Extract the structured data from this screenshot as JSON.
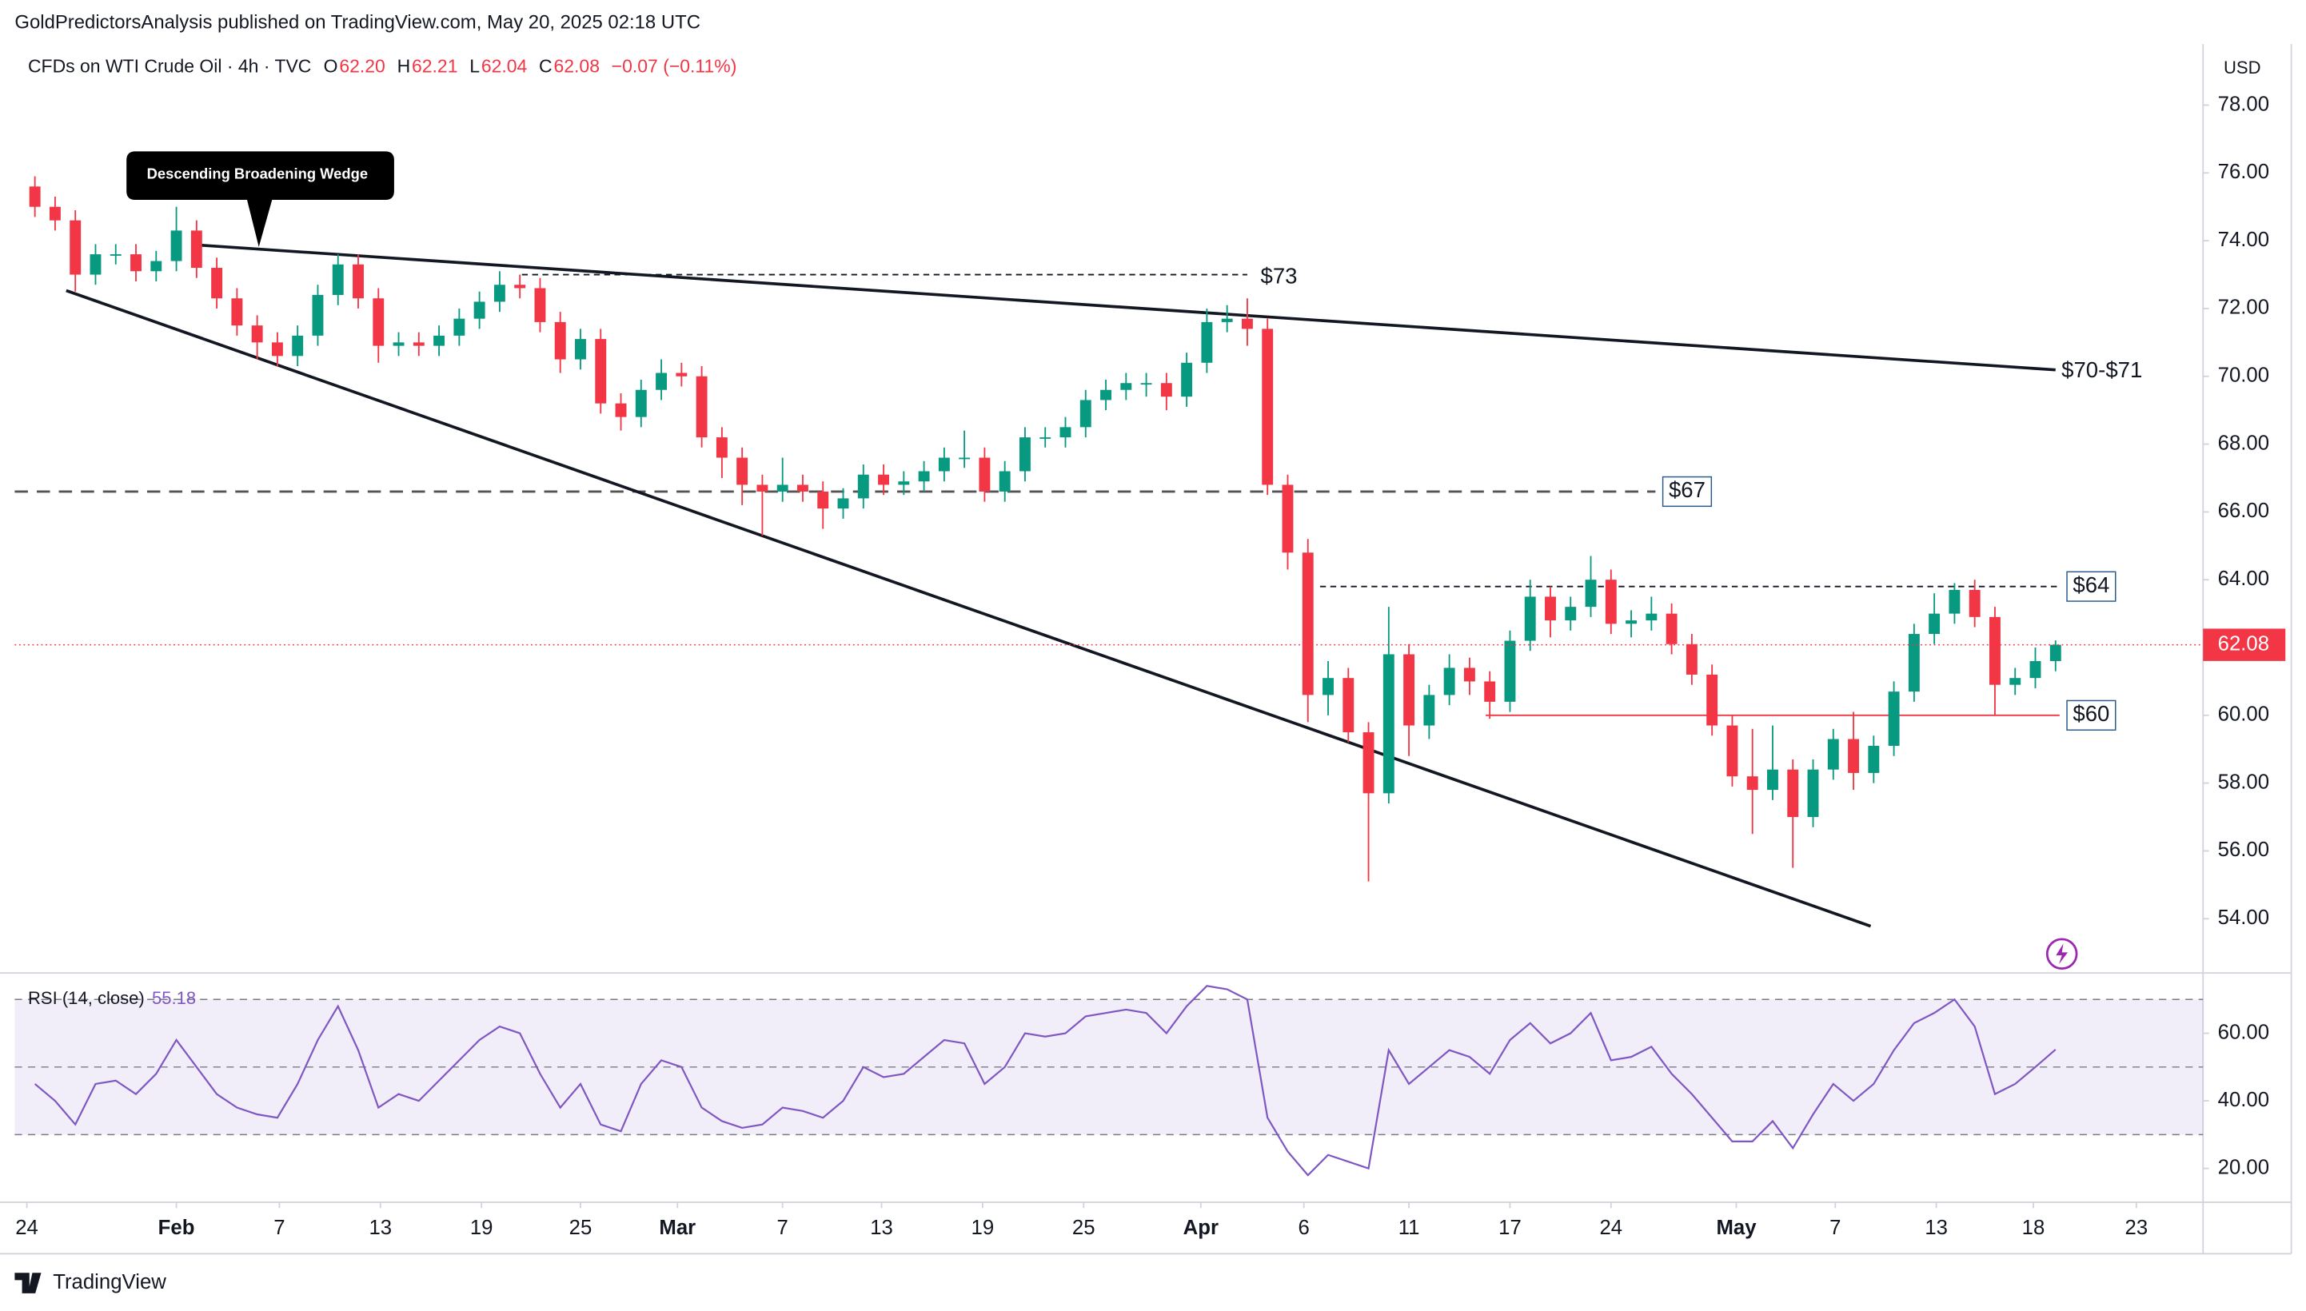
{
  "header": "GoldPredictorsAnalysis published on TradingView.com, May 20, 2025 02:18 UTC",
  "legend": {
    "symbol": "CFDs on WTI Crude Oil · 4h · TVC",
    "fields": [
      {
        "key": "O",
        "value": "62.20"
      },
      {
        "key": "H",
        "value": "62.21"
      },
      {
        "key": "L",
        "value": "62.04"
      },
      {
        "key": "C",
        "value": "62.08"
      }
    ],
    "change": "−0.07 (−0.11%)"
  },
  "currency": "USD",
  "brand": "TradingView",
  "chart_data": {
    "type": "candlestick",
    "up_color": "#089981",
    "down_color": "#f23645",
    "xlim": [
      -1,
      107.3
    ],
    "xticks": [
      {
        "value": -0.4,
        "label": "24"
      },
      {
        "value": 7,
        "label": "Feb"
      },
      {
        "value": 12.1,
        "label": "7"
      },
      {
        "value": 17.1,
        "label": "13"
      },
      {
        "value": 22.1,
        "label": "19"
      },
      {
        "value": 27,
        "label": "25"
      },
      {
        "value": 31.8,
        "label": "Mar"
      },
      {
        "value": 37,
        "label": "7"
      },
      {
        "value": 41.9,
        "label": "13"
      },
      {
        "value": 46.9,
        "label": "19"
      },
      {
        "value": 51.9,
        "label": "25"
      },
      {
        "value": 57.7,
        "label": "Apr"
      },
      {
        "value": 62.8,
        "label": "6"
      },
      {
        "value": 68,
        "label": "11"
      },
      {
        "value": 73,
        "label": "17"
      },
      {
        "value": 78,
        "label": "24"
      },
      {
        "value": 84.2,
        "label": "May"
      },
      {
        "value": 89.1,
        "label": "7"
      },
      {
        "value": 94.1,
        "label": "13"
      },
      {
        "value": 98.9,
        "label": "18"
      },
      {
        "value": 104,
        "label": "23"
      }
    ],
    "ylim": [
      52.4,
      79.8
    ],
    "yticks": [
      {
        "value": 54,
        "label": "54.00"
      },
      {
        "value": 56,
        "label": "56.00"
      },
      {
        "value": 58,
        "label": "58.00"
      },
      {
        "value": 60,
        "label": "60.00"
      },
      {
        "value": 62,
        "label": "62.00"
      },
      {
        "value": 64,
        "label": "64.00"
      },
      {
        "value": 66,
        "label": "66.00"
      },
      {
        "value": 68,
        "label": "68.00"
      },
      {
        "value": 70,
        "label": "70.00"
      },
      {
        "value": 72,
        "label": "72.00"
      },
      {
        "value": 74,
        "label": "74.00"
      },
      {
        "value": 76,
        "label": "76.00"
      },
      {
        "value": 78,
        "label": "78.00"
      }
    ],
    "open": [
      75.6,
      75.0,
      74.6,
      73.0,
      73.6,
      73.6,
      73.1,
      73.4,
      74.3,
      73.2,
      72.3,
      71.5,
      71.0,
      70.6,
      71.2,
      72.4,
      73.3,
      72.3,
      70.9,
      71.0,
      70.9,
      71.2,
      71.7,
      72.2,
      72.7,
      72.6,
      71.6,
      70.5,
      71.1,
      69.2,
      68.8,
      69.6,
      70.1,
      70.0,
      68.2,
      67.6,
      66.8,
      66.6,
      66.8,
      66.6,
      66.1,
      66.4,
      67.1,
      66.8,
      66.9,
      67.2,
      67.6,
      67.6,
      66.6,
      67.2,
      68.2,
      68.2,
      68.5,
      69.3,
      69.6,
      69.8,
      69.8,
      69.4,
      70.4,
      71.6,
      71.7,
      71.4,
      66.8,
      64.8,
      60.6,
      61.1,
      59.5,
      57.7,
      61.8,
      59.7,
      60.6,
      61.4,
      61.0,
      60.4,
      62.2,
      63.5,
      62.8,
      63.2,
      64.0,
      62.7,
      62.8,
      63.0,
      62.1,
      61.2,
      59.7,
      58.2,
      57.8,
      58.4,
      57.0,
      58.4,
      59.3,
      58.3,
      59.1,
      60.7,
      62.4,
      63.0,
      63.7,
      62.9,
      60.9,
      61.1,
      61.6
    ],
    "high": [
      75.9,
      75.3,
      74.9,
      73.9,
      73.9,
      73.9,
      73.7,
      75.0,
      74.6,
      73.5,
      72.6,
      71.8,
      71.3,
      71.5,
      72.7,
      73.6,
      73.6,
      72.6,
      71.3,
      71.3,
      71.5,
      72.0,
      72.5,
      73.1,
      73.0,
      72.9,
      71.9,
      71.4,
      71.4,
      69.5,
      69.9,
      70.5,
      70.4,
      70.3,
      68.5,
      67.9,
      67.1,
      67.6,
      67.1,
      66.9,
      66.7,
      67.4,
      67.4,
      67.2,
      67.5,
      67.9,
      68.4,
      67.9,
      67.5,
      68.5,
      68.5,
      68.8,
      69.6,
      69.9,
      70.1,
      70.1,
      70.1,
      70.7,
      72.0,
      72.1,
      72.3,
      71.7,
      67.1,
      65.2,
      61.6,
      61.4,
      59.8,
      63.2,
      62.1,
      60.9,
      61.8,
      61.7,
      61.3,
      62.5,
      64.0,
      63.8,
      63.5,
      64.7,
      64.3,
      63.1,
      63.5,
      63.3,
      62.4,
      61.5,
      60.0,
      59.6,
      59.7,
      58.7,
      58.7,
      59.6,
      60.1,
      59.4,
      61.0,
      62.7,
      63.6,
      63.9,
      64.0,
      63.2,
      61.4,
      62.0,
      62.21
    ],
    "low": [
      74.7,
      74.3,
      72.5,
      72.7,
      73.3,
      72.8,
      72.8,
      73.1,
      72.9,
      72.0,
      71.2,
      70.5,
      70.3,
      70.3,
      70.9,
      72.1,
      72.0,
      70.4,
      70.6,
      70.6,
      70.6,
      70.9,
      71.4,
      71.9,
      72.3,
      71.3,
      70.1,
      70.2,
      68.9,
      68.4,
      68.5,
      69.3,
      69.7,
      67.9,
      67.0,
      66.2,
      65.3,
      66.3,
      66.3,
      65.5,
      65.8,
      66.1,
      66.5,
      66.5,
      66.6,
      66.9,
      67.3,
      66.3,
      66.3,
      66.9,
      67.9,
      67.9,
      68.2,
      69.0,
      69.3,
      69.4,
      69.0,
      69.1,
      70.1,
      71.3,
      70.9,
      66.5,
      64.3,
      59.8,
      60.0,
      59.2,
      55.1,
      57.4,
      58.8,
      59.3,
      60.3,
      60.6,
      59.9,
      60.1,
      61.9,
      62.3,
      62.5,
      62.9,
      62.4,
      62.3,
      62.5,
      61.8,
      60.9,
      59.4,
      57.9,
      56.5,
      57.5,
      55.5,
      56.7,
      58.1,
      57.8,
      58.0,
      58.8,
      60.4,
      62.1,
      62.7,
      62.6,
      60.0,
      60.6,
      60.8,
      61.3
    ],
    "close": [
      75.0,
      74.6,
      73.0,
      73.6,
      73.6,
      73.1,
      73.4,
      74.3,
      73.2,
      72.3,
      71.5,
      71.0,
      70.6,
      71.2,
      72.4,
      73.3,
      72.3,
      70.9,
      71.0,
      70.9,
      71.2,
      71.7,
      72.2,
      72.7,
      72.6,
      71.6,
      70.5,
      71.1,
      69.2,
      68.8,
      69.6,
      70.1,
      70.0,
      68.2,
      67.6,
      66.8,
      66.6,
      66.8,
      66.6,
      66.1,
      66.4,
      67.1,
      66.8,
      66.9,
      67.2,
      67.6,
      67.6,
      66.6,
      67.2,
      68.2,
      68.2,
      68.5,
      69.3,
      69.6,
      69.8,
      69.8,
      69.4,
      70.4,
      71.6,
      71.7,
      71.4,
      66.8,
      64.8,
      60.6,
      61.1,
      59.5,
      57.7,
      61.8,
      59.7,
      60.6,
      61.4,
      61.0,
      60.4,
      62.2,
      63.5,
      62.8,
      63.2,
      64.0,
      62.7,
      62.8,
      63.0,
      62.1,
      61.2,
      59.7,
      58.2,
      57.8,
      58.4,
      57.0,
      58.4,
      59.3,
      58.3,
      59.1,
      60.7,
      62.4,
      63.0,
      63.7,
      62.9,
      60.9,
      61.1,
      61.6,
      62.08
    ],
    "last_price": {
      "value": 62.08,
      "label": "62.08"
    },
    "levels": [
      {
        "value": 73,
        "label": "$73",
        "from": 24.1,
        "to": 60,
        "style": "thin",
        "color": "#131722",
        "boxed": false
      },
      {
        "value": 66.6,
        "label": "$67",
        "from": -1,
        "to": 80.2,
        "style": "thick",
        "color": "#555",
        "boxed": true
      },
      {
        "value": 63.8,
        "label": "$64",
        "from": 63.6,
        "to": 100.2,
        "style": "thin",
        "color": "#131722",
        "boxed": true
      },
      {
        "value": 60,
        "label": "$60",
        "from": 71.8,
        "to": 100.2,
        "style": "solid",
        "color": "#f23645",
        "boxed": true
      }
    ],
    "trendlines": [
      {
        "from": [
          7.9,
          73.88
        ],
        "to": [
          100,
          70.19
        ],
        "label": "$70-$71"
      },
      {
        "from": [
          1.55,
          72.53
        ],
        "to": [
          90.85,
          53.78
        ]
      }
    ],
    "callout": "Descending Broadening Wedge",
    "rsi": {
      "name": "RSI (14, close)",
      "value_label": "55.18",
      "color": "#7e57c2",
      "ylim": [
        10,
        77.4
      ],
      "yticks": [
        {
          "value": 20,
          "label": "20.00"
        },
        {
          "value": 40,
          "label": "40.00"
        },
        {
          "value": 60,
          "label": "60.00"
        }
      ],
      "levels": [
        70,
        50,
        30
      ],
      "values": [
        45,
        40,
        33,
        45,
        46,
        42,
        48,
        58,
        50,
        42,
        38,
        36,
        35,
        45,
        58,
        68,
        55,
        38,
        42,
        40,
        46,
        52,
        58,
        62,
        60,
        48,
        38,
        45,
        33,
        31,
        45,
        52,
        50,
        38,
        34,
        32,
        33,
        38,
        37,
        35,
        40,
        50,
        47,
        48,
        53,
        58,
        57,
        45,
        50,
        60,
        59,
        60,
        65,
        66,
        67,
        66,
        60,
        68,
        74,
        73,
        70,
        35,
        25,
        18,
        24,
        22,
        20,
        55,
        45,
        50,
        55,
        53,
        48,
        58,
        63,
        57,
        60,
        66,
        52,
        53,
        56,
        48,
        42,
        35,
        28,
        28,
        34,
        26,
        36,
        45,
        40,
        45,
        55,
        63,
        66,
        70,
        62,
        42,
        45,
        50,
        55.18
      ]
    }
  }
}
